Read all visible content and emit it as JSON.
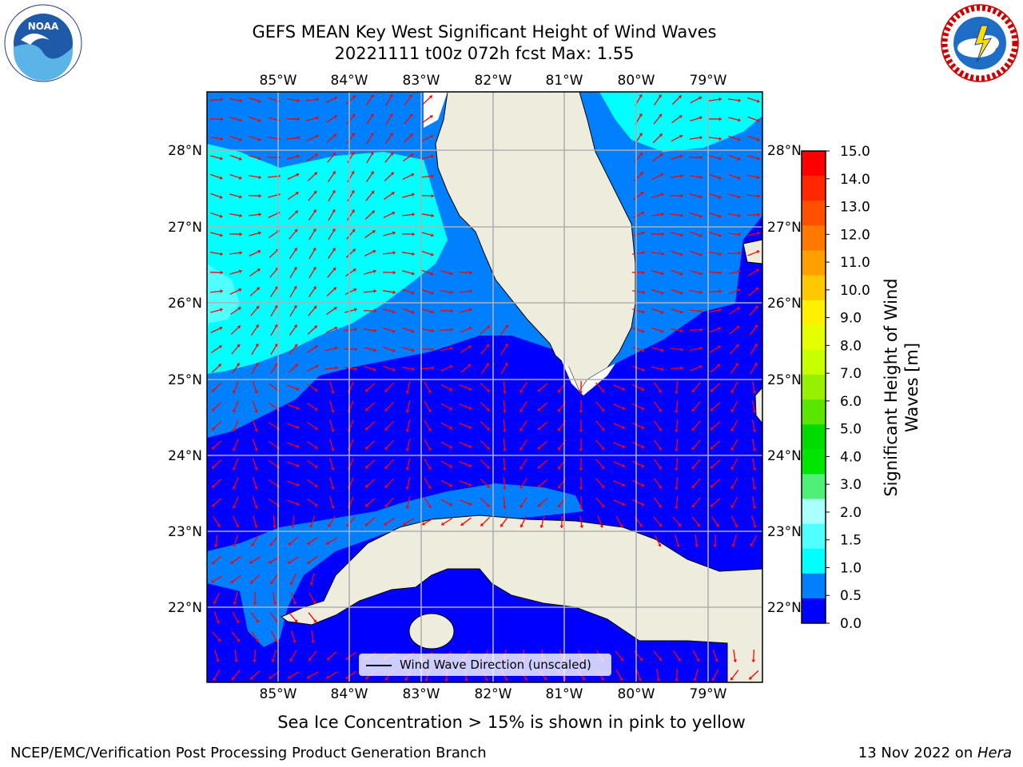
{
  "header": {
    "title_line1": "GEFS MEAN Key West Significant Height of Wind Waves",
    "title_line2": "20221111 t00z 072h fcst   Max: 1.55"
  },
  "logos": {
    "noaa": {
      "text": "NOAA",
      "ring_text": "NATIONAL OCEANIC AND ATMOSPHERIC ADMINISTRATION · U.S. DEPARTMENT OF COMMERCE"
    },
    "nws": {
      "ring_text": "NATIONAL WEATHER SERVICE"
    }
  },
  "map": {
    "lon_ticks": [
      "85°W",
      "84°W",
      "83°W",
      "82°W",
      "81°W",
      "80°W",
      "79°W"
    ],
    "lat_ticks": [
      "28°N",
      "27°N",
      "26°N",
      "25°N",
      "24°N",
      "23°N",
      "22°N"
    ],
    "legend_label": "Wind Wave Direction (unscaled)",
    "arrow_color": "#ff0000",
    "land_color": "#eeecdc",
    "grid_color": "#b0b0b0"
  },
  "colorbar": {
    "label": "Significant Height of Wind Waves [m]",
    "ticks": [
      "15.0",
      "14.0",
      "13.0",
      "12.0",
      "11.0",
      "10.0",
      "9.0",
      "8.0",
      "7.0",
      "6.0",
      "5.0",
      "4.0",
      "3.0",
      "2.0",
      "1.5",
      "1.0",
      "0.5",
      "0.0"
    ],
    "colors": [
      "#ff0000",
      "#ff2800",
      "#ff5000",
      "#ff7800",
      "#ffa000",
      "#ffc800",
      "#fff000",
      "#e6ff00",
      "#c8ff00",
      "#96f000",
      "#5ae600",
      "#00dc00",
      "#00e600",
      "#50f078",
      "#aaffff",
      "#50ffff",
      "#00ffff",
      "#0080ff",
      "#0000ff"
    ]
  },
  "caption": "Sea Ice Concentration > 15% is shown in pink to yellow",
  "footer": {
    "credit": "NCEP/EMC/Verification Post Processing Product Generation Branch",
    "date": "13 Nov 2022 on ",
    "machine": "Hera"
  }
}
